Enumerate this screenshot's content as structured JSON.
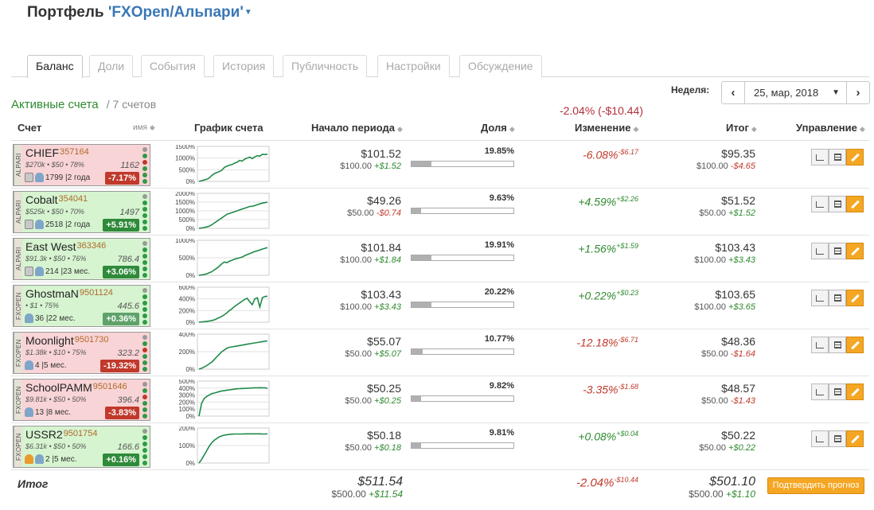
{
  "title": {
    "prefix": "Портфель",
    "name": "'FXOpen/Альпари'"
  },
  "tabs": [
    "Баланс",
    "Доли",
    "События",
    "История",
    "Публичность",
    "Настройки",
    "Обсуждение"
  ],
  "active_tab": "Баланс",
  "week": {
    "label": "Неделя:",
    "value": "25, мар, 2018"
  },
  "active_accounts": {
    "label": "Активные счета",
    "change": "-2.04% (-$10.44)",
    "count": "/ 7 счетов"
  },
  "columns": {
    "account": "Счет",
    "name_sort": "имя",
    "chart": "График счета",
    "start": "Начало периода",
    "share": "Доля",
    "change": "Изменение",
    "result": "Итог",
    "manage": "Управление"
  },
  "rows": [
    {
      "name": "CHIEF",
      "num": "357164",
      "broker": "ALPARI",
      "params": "$270k • $50 • 78%",
      "value": "1162",
      "meta": "1799 |2 года",
      "badge": "-7.17%",
      "badge_class": "neg",
      "card_class": "neg",
      "icons": [
        "doc",
        "user"
      ],
      "yticks": [
        "1500%",
        "1000%",
        "500%",
        "0%"
      ],
      "ymax": 1500,
      "series": [
        0,
        30,
        60,
        90,
        140,
        250,
        330,
        380,
        420,
        480,
        600,
        650,
        700,
        720,
        780,
        820,
        900,
        870,
        950,
        1000,
        1040,
        980,
        1050,
        1100,
        1080,
        1160,
        1150,
        1170
      ],
      "start_big": "$101.52",
      "start_base": "$100.00",
      "start_delta": "+$1.52",
      "start_delta_class": "gain",
      "share": "19.85%",
      "share_fill": 0.1985,
      "change": "-6.08%",
      "change_amt": "-$6.17",
      "change_class": "loss",
      "end_big": "$95.35",
      "end_base": "$100.00",
      "end_delta": "-$4.65",
      "end_delta_class": "loss",
      "dots": [
        "#999",
        "#2e9a45",
        "#c0392b",
        "#2e9a45",
        "#2e9a45",
        "#2e9a45"
      ]
    },
    {
      "name": "Cobalt",
      "num": "354041",
      "broker": "ALPARI",
      "params": "$525k • $50 • 70%",
      "value": "1497",
      "meta": "2518 |2 года",
      "badge": "+5.91%",
      "badge_class": "pos",
      "card_class": "pos",
      "icons": [
        "doc",
        "user"
      ],
      "yticks": [
        "2000%",
        "1500%",
        "1000%",
        "500%",
        "0%"
      ],
      "ymax": 2000,
      "series": [
        0,
        20,
        50,
        80,
        120,
        200,
        300,
        400,
        500,
        600,
        700,
        800,
        850,
        900,
        950,
        1000,
        1050,
        1100,
        1150,
        1200,
        1250,
        1260,
        1300,
        1350,
        1400,
        1440,
        1470,
        1500
      ],
      "start_big": "$49.26",
      "start_base": "$50.00",
      "start_delta": "-$0.74",
      "start_delta_class": "loss",
      "share": "9.63%",
      "share_fill": 0.0963,
      "change": "+4.59%",
      "change_amt": "+$2.26",
      "change_class": "gain",
      "end_big": "$51.52",
      "end_base": "$50.00",
      "end_delta": "+$1.52",
      "end_delta_class": "gain",
      "dots": [
        "#999",
        "#2e9a45",
        "#2e9a45",
        "#2e9a45",
        "#2e9a45",
        "#2e9a45"
      ]
    },
    {
      "name": "East West",
      "num": "363346",
      "broker": "ALPARI",
      "params": "$91.3k • $50 • 76%",
      "value": "786.4",
      "meta": "214 |23 мес.",
      "badge": "+3.06%",
      "badge_class": "pos",
      "card_class": "pos",
      "icons": [
        "doc",
        "user"
      ],
      "yticks": [
        "1000%",
        "500%",
        "0%"
      ],
      "ymax": 1000,
      "series": [
        0,
        10,
        20,
        40,
        70,
        100,
        150,
        200,
        260,
        330,
        380,
        360,
        400,
        430,
        460,
        480,
        500,
        520,
        560,
        590,
        620,
        650,
        680,
        700,
        720,
        750,
        770,
        790
      ],
      "start_big": "$101.84",
      "start_base": "$100.00",
      "start_delta": "+$1.84",
      "start_delta_class": "gain",
      "share": "19.91%",
      "share_fill": 0.1991,
      "change": "+1.56%",
      "change_amt": "+$1.59",
      "change_class": "gain",
      "end_big": "$103.43",
      "end_base": "$100.00",
      "end_delta": "+$3.43",
      "end_delta_class": "gain",
      "dots": [
        "#999",
        "#2e9a45",
        "#2e9a45",
        "#2e9a45",
        "#2e9a45",
        "#2e9a45"
      ]
    },
    {
      "name": "GhostmaN",
      "num": "9501124",
      "broker": "FXOPEN",
      "params": "• $1 • 75%",
      "value": "445.6",
      "meta": "36 |22 мес.",
      "badge": "+0.36%",
      "badge_class": "lt",
      "card_class": "pos",
      "icons": [
        "user"
      ],
      "yticks": [
        "600%",
        "400%",
        "200%",
        "0%"
      ],
      "ymax": 600,
      "series": [
        0,
        5,
        10,
        15,
        20,
        30,
        40,
        60,
        80,
        100,
        130,
        160,
        200,
        230,
        270,
        300,
        330,
        360,
        390,
        410,
        350,
        300,
        400,
        420,
        260,
        420,
        440,
        446
      ],
      "start_big": "$103.43",
      "start_base": "$100.00",
      "start_delta": "+$3.43",
      "start_delta_class": "gain",
      "share": "20.22%",
      "share_fill": 0.2022,
      "change": "+0.22%",
      "change_amt": "+$0.23",
      "change_class": "gain",
      "end_big": "$103.65",
      "end_base": "$100.00",
      "end_delta": "+$3.65",
      "end_delta_class": "gain",
      "dots": [
        "#999",
        "#2e9a45",
        "#2e9a45",
        "#2e9a45",
        "#2e9a45",
        "#2e9a45"
      ]
    },
    {
      "name": "Moonlight",
      "num": "9501730",
      "broker": "FXOPEN",
      "params": "$1.38k • $10 • 75%",
      "value": "323.2",
      "meta": "4 |5 мес.",
      "badge": "-19.32%",
      "badge_class": "neg",
      "card_class": "neg",
      "icons": [
        "user"
      ],
      "yticks": [
        "400%",
        "200%",
        "0%"
      ],
      "ymax": 400,
      "series": [
        0,
        10,
        25,
        40,
        60,
        80,
        110,
        140,
        170,
        200,
        220,
        240,
        250,
        255,
        260,
        265,
        270,
        275,
        280,
        285,
        290,
        295,
        300,
        305,
        310,
        315,
        320,
        323
      ],
      "start_big": "$55.07",
      "start_base": "$50.00",
      "start_delta": "+$5.07",
      "start_delta_class": "gain",
      "share": "10.77%",
      "share_fill": 0.1077,
      "change": "-12.18%",
      "change_amt": "-$6.71",
      "change_class": "loss",
      "end_big": "$48.36",
      "end_base": "$50.00",
      "end_delta": "-$1.64",
      "end_delta_class": "loss",
      "dots": [
        "#999",
        "#2e9a45",
        "#c0392b",
        "#2e9a45",
        "#2e9a45",
        "#2e9a45"
      ]
    },
    {
      "name": "SchoolPAMM",
      "num": "9501646",
      "broker": "FXOPEN",
      "params": "$9.81k • $50 • 50%",
      "value": "396.4",
      "meta": "13 |8 мес.",
      "badge": "-3.83%",
      "badge_class": "neg",
      "card_class": "neg",
      "icons": [
        "user"
      ],
      "yticks": [
        "500%",
        "400%",
        "300%",
        "200%",
        "100%",
        "0%"
      ],
      "ymax": 500,
      "series": [
        0,
        180,
        250,
        280,
        300,
        320,
        330,
        340,
        350,
        360,
        365,
        370,
        375,
        380,
        385,
        390,
        392,
        394,
        396,
        398,
        400,
        402,
        404,
        405,
        406,
        405,
        404,
        396
      ],
      "start_big": "$50.25",
      "start_base": "$50.00",
      "start_delta": "+$0.25",
      "start_delta_class": "gain",
      "share": "9.82%",
      "share_fill": 0.0982,
      "change": "-3.35%",
      "change_amt": "-$1.68",
      "change_class": "loss",
      "end_big": "$48.57",
      "end_base": "$50.00",
      "end_delta": "-$1.43",
      "end_delta_class": "loss",
      "dots": [
        "#999",
        "#2e9a45",
        "#c0392b",
        "#2e9a45",
        "#2e9a45",
        "#2e9a45"
      ]
    },
    {
      "name": "USSR2",
      "num": "9501754",
      "broker": "FXOPEN",
      "params": "$6.31k • $50 • 50%",
      "value": "166.6",
      "meta": "2 |5 мес.",
      "badge": "+0.16%",
      "badge_class": "pos",
      "card_class": "pos",
      "icons": [
        "warn",
        "user"
      ],
      "yticks": [
        "200%",
        "100%",
        "0%"
      ],
      "ymax": 200,
      "series": [
        0,
        20,
        45,
        70,
        95,
        115,
        130,
        140,
        150,
        155,
        160,
        162,
        164,
        165,
        166,
        166,
        166,
        166,
        167,
        167,
        167,
        167,
        167,
        167,
        167,
        166,
        166,
        167
      ],
      "start_big": "$50.18",
      "start_base": "$50.00",
      "start_delta": "+$0.18",
      "start_delta_class": "gain",
      "share": "9.81%",
      "share_fill": 0.0981,
      "change": "+0.08%",
      "change_amt": "+$0.04",
      "change_class": "gain",
      "end_big": "$50.22",
      "end_base": "$50.00",
      "end_delta": "+$0.22",
      "end_delta_class": "gain",
      "dots": [
        "#999",
        "#2e9a45",
        "#2e9a45",
        "#2e9a45",
        "#2e9a45",
        "#2e9a45"
      ]
    }
  ],
  "total": {
    "label": "Итог",
    "start_big": "$511.54",
    "start_base": "$500.00",
    "start_delta": "+$11.54",
    "change": "-2.04%",
    "change_amt": "-$10.44",
    "end_big": "$501.10",
    "end_base": "$500.00",
    "end_delta": "+$1.10",
    "confirm": "Подтвердить прогноз"
  },
  "colors": {
    "accent": "#3a77b6",
    "gain": "#2f8a2f",
    "loss": "#c0392b",
    "button": "#f5a623"
  }
}
